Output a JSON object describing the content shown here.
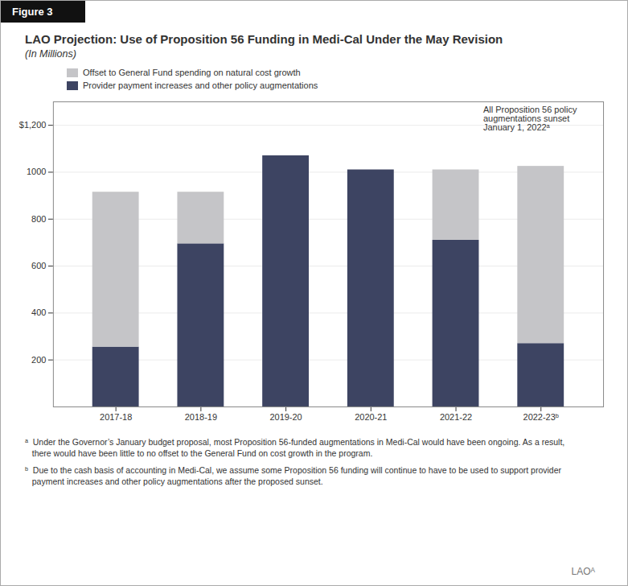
{
  "chart_data": {
    "type": "bar",
    "stacked": true,
    "figure_label": "Figure 3",
    "title": "LAO Projection: Use of Proposition 56 Funding in Medi-Cal Under the May Revision",
    "subtitle": "(In Millions)",
    "categories": [
      "2017-18",
      "2018-19",
      "2019-20",
      "2020-21",
      "2021-22",
      "2022-23ᵇ"
    ],
    "series": [
      {
        "name": "Provider payment increases and other policy augmentations",
        "color": "#3d4462",
        "values": [
          255,
          695,
          1070,
          1010,
          710,
          270
        ]
      },
      {
        "name": "Offset to General Fund spending on natural cost growth",
        "color": "#c5c5c8",
        "values": [
          660,
          220,
          0,
          0,
          300,
          755
        ]
      }
    ],
    "ylim": [
      0,
      1300
    ],
    "yticks": [
      200,
      400,
      600,
      800,
      1000,
      {
        "value": 1200,
        "label": "$1,200"
      }
    ],
    "grid": true,
    "legend": "upper left",
    "annotation": "All Proposition 56 policy\naugmentations sunset\nJanuary 1, 2022ᵃ",
    "footnotes": [
      "ᵃ  Under the Governor’s January budget proposal, most Proposition 56-funded augmentations in Medi-Cal would have been ongoing. As a result,\n   there would have been little to no offset to the General Fund on cost growth in the program.",
      "ᵇ  Due to the cash basis of accounting in Medi-Cal, we assume some Proposition 56 funding will continue to have to be used to support provider\n   payment increases and other policy augmentations after the proposed sunset."
    ],
    "logo": "LAOᴬ"
  }
}
